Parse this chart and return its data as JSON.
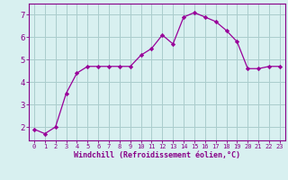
{
  "x": [
    0,
    1,
    2,
    3,
    4,
    5,
    6,
    7,
    8,
    9,
    10,
    11,
    12,
    13,
    14,
    15,
    16,
    17,
    18,
    19,
    20,
    21,
    22,
    23
  ],
  "y": [
    1.9,
    1.7,
    2.0,
    3.5,
    4.4,
    4.7,
    4.7,
    4.7,
    4.7,
    4.7,
    5.2,
    5.5,
    6.1,
    5.7,
    6.9,
    7.1,
    6.9,
    6.7,
    6.3,
    5.8,
    4.6,
    4.6,
    4.7,
    4.7
  ],
  "line_color": "#990099",
  "marker": "D",
  "marker_size": 2.2,
  "bg_color": "#d8f0f0",
  "grid_color": "#aacccc",
  "xlabel": "Windchill (Refroidissement éolien,°C)",
  "xlabel_color": "#880088",
  "tick_color": "#880088",
  "axis_color": "#880088",
  "ylim": [
    1.4,
    7.5
  ],
  "yticks": [
    2,
    3,
    4,
    5,
    6,
    7
  ],
  "xlim": [
    -0.5,
    23.5
  ],
  "xticks": [
    0,
    1,
    2,
    3,
    4,
    5,
    6,
    7,
    8,
    9,
    10,
    11,
    12,
    13,
    14,
    15,
    16,
    17,
    18,
    19,
    20,
    21,
    22,
    23
  ],
  "tick_fontsize": 5.0,
  "xlabel_fontsize": 6.0,
  "ytick_fontsize": 6.5
}
